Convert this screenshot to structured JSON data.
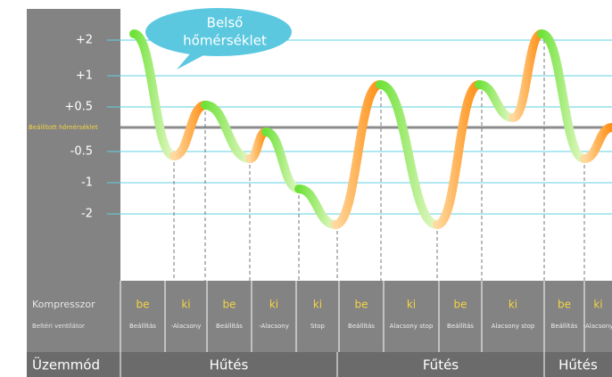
{
  "bubble": {
    "line1": "Belső",
    "line2": "hőmérséklet"
  },
  "y_labels": [
    "+2",
    "+1",
    "+0.5",
    "-0.5",
    "-1",
    "-2"
  ],
  "set_temperature_label": "Beállított hőmérséklet",
  "table": {
    "row_labels": [
      "Kompresszor",
      "Beltéri ventilátor"
    ],
    "columns": [
      {
        "compressor": "be",
        "fan": "Beállítás"
      },
      {
        "compressor": "ki",
        "fan": "-Alacsony"
      },
      {
        "compressor": "be",
        "fan": "Beállítás"
      },
      {
        "compressor": "ki",
        "fan": "-Alacsony"
      },
      {
        "compressor": "ki",
        "fan": "Stop"
      },
      {
        "compressor": "be",
        "fan": "Beállítás"
      },
      {
        "compressor": "ki",
        "fan": "Alacsony stop"
      },
      {
        "compressor": "be",
        "fan": "Beállítás"
      },
      {
        "compressor": "ki",
        "fan": "Alacsony stop"
      },
      {
        "compressor": "be",
        "fan": "Beállítás"
      },
      {
        "compressor": "ki",
        "fan": "-Alacsony"
      }
    ]
  },
  "mode": {
    "label": "Üzemmód",
    "modes": [
      "Hűtés",
      "Fűtés",
      "Hűtés"
    ]
  }
}
